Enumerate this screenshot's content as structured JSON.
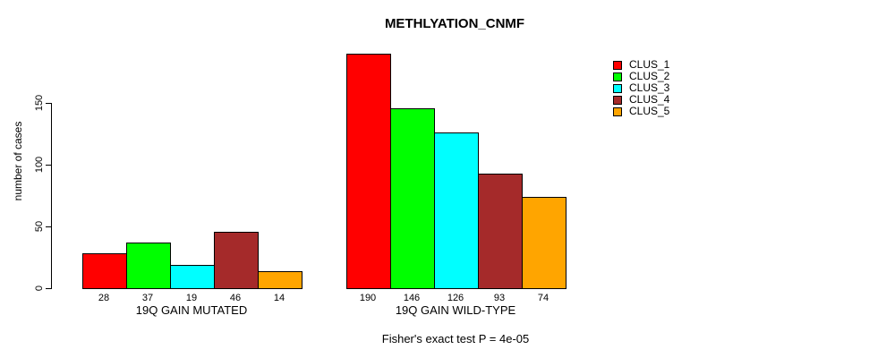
{
  "chart_data": {
    "type": "bar",
    "title": "METHLYATION_CNMF",
    "ylabel": "number of cases",
    "xlabel": "",
    "categories": [
      "19Q GAIN MUTATED",
      "19Q GAIN WILD-TYPE"
    ],
    "series": [
      {
        "name": "CLUS_1",
        "color": "#ff0000",
        "values": [
          28,
          190
        ]
      },
      {
        "name": "CLUS_2",
        "color": "#00ff00",
        "values": [
          37,
          146
        ]
      },
      {
        "name": "CLUS_3",
        "color": "#00ffff",
        "values": [
          19,
          126
        ]
      },
      {
        "name": "CLUS_4",
        "color": "#a52a2a",
        "values": [
          46,
          93
        ]
      },
      {
        "name": "CLUS_5",
        "color": "#ffa500",
        "values": [
          14,
          74
        ]
      }
    ],
    "show_values_under_bars": true,
    "annotation": "Fisher's exact test P = 4e-05",
    "ylim": [
      0,
      200
    ],
    "yticks": [
      0,
      50,
      100,
      150
    ],
    "grid": false,
    "legend_position": "top-right",
    "bar_border_color": "#000000",
    "axis_color": "#000000",
    "background": "#ffffff",
    "legend_entries": [
      "CLUS_1",
      "CLUS_2",
      "CLUS_3",
      "CLUS_4",
      "CLUS_5"
    ]
  }
}
